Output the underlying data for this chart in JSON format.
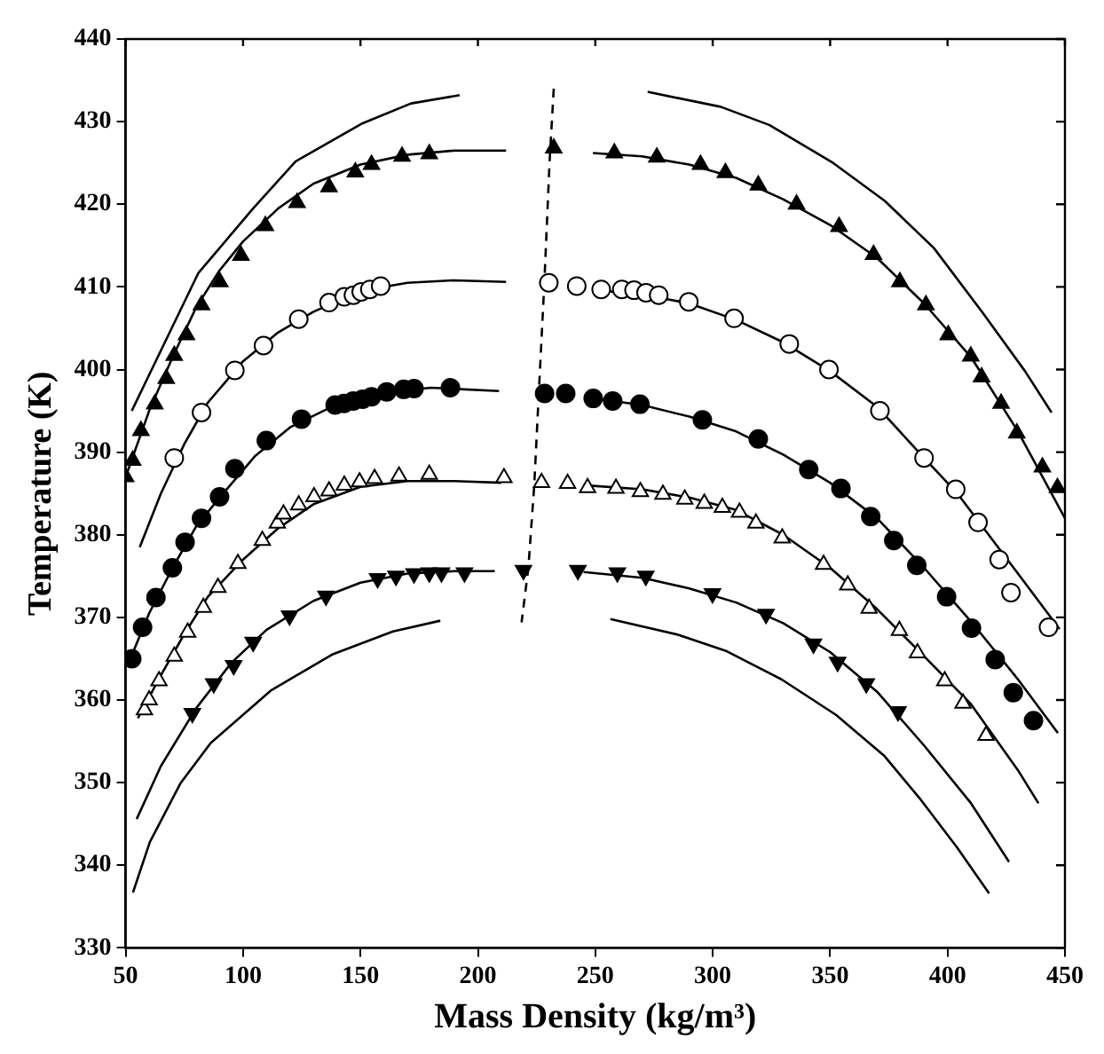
{
  "chart_data": {
    "type": "scatter",
    "xlabel": "Mass Density (kg/m³)",
    "ylabel": "Temperature (K)",
    "xlim": [
      50,
      450
    ],
    "xticks": [
      50,
      100,
      150,
      200,
      250,
      300,
      350,
      400,
      450
    ],
    "ylim": [
      330,
      440
    ],
    "yticks": [
      330,
      340,
      350,
      360,
      370,
      380,
      390,
      400,
      410,
      420,
      430,
      440
    ],
    "grid": false,
    "legend": false,
    "series": [
      {
        "type": "scatter",
        "marker": "triangle",
        "color": "#000000",
        "x": [
          50,
          53,
          56.5,
          62.4,
          67.3,
          70.7,
          75.9,
          82.3,
          90.1,
          99.1,
          109.5,
          123,
          136.6,
          147.8,
          154.7,
          167.7,
          179.3,
          232.3,
          258.1,
          276.2,
          294.8,
          305.4,
          319.4,
          335.7,
          353.8,
          368.5,
          379.7,
          390.8,
          400.3,
          409.9,
          414.5,
          422.8,
          429.5,
          440.4,
          446.8
        ],
        "values": [
          387,
          389,
          392.6,
          395.8,
          398.9,
          401.7,
          404.2,
          407.8,
          410.6,
          413.8,
          417.4,
          420.2,
          422.1,
          423.9,
          424.8,
          425.8,
          426.1,
          426.8,
          426.2,
          425.7,
          424.8,
          423.8,
          422.3,
          420,
          417.3,
          413.9,
          410.6,
          407.8,
          404.2,
          401.6,
          399.1,
          395.9,
          392.3,
          388.2,
          385.7
        ]
      },
      {
        "type": "scatter",
        "marker": "circle_open",
        "color": "#000000",
        "x": [
          70.7,
          82.3,
          96.5,
          108.7,
          123.7,
          136.6,
          143.1,
          147,
          150.3,
          154,
          158.6,
          230.2,
          242.1,
          252.5,
          261.3,
          266.5,
          271.6,
          277,
          289.8,
          309.1,
          332.6,
          349.5,
          371.2,
          390,
          403.5,
          413,
          422,
          427,
          443
        ],
        "values": [
          389.3,
          394.8,
          399.9,
          402.9,
          406.1,
          408.1,
          408.8,
          409,
          409.4,
          409.7,
          410.1,
          410.5,
          410.1,
          409.7,
          409.7,
          409.6,
          409.3,
          409,
          408.2,
          406.2,
          403.1,
          400,
          395,
          389.3,
          385.5,
          381.5,
          377,
          373,
          368.8
        ]
      },
      {
        "type": "scatter",
        "marker": "circle",
        "color": "#000000",
        "x": [
          52.6,
          57.2,
          62.9,
          69.9,
          75.3,
          82.3,
          90,
          96.5,
          109.9,
          124.9,
          139.2,
          143,
          146.9,
          150.9,
          154.7,
          161.2,
          168.4,
          172.8,
          188.3,
          228.4,
          237.4,
          249.1,
          257.4,
          269,
          295.6,
          319.4,
          340.9,
          354.6,
          367.3,
          377.1,
          386.9,
          399.6,
          410.2,
          420.3,
          428,
          436.6
        ],
        "values": [
          365,
          368.8,
          372.4,
          376,
          379.1,
          382,
          384.6,
          388,
          391.4,
          394,
          395.7,
          395.9,
          396.2,
          396.4,
          396.7,
          397.3,
          397.6,
          397.7,
          397.8,
          397.1,
          397.1,
          396.5,
          396.2,
          395.8,
          393.9,
          391.6,
          387.9,
          385.6,
          382.2,
          379.3,
          376.3,
          372.5,
          368.7,
          364.9,
          360.9,
          357.5
        ]
      },
      {
        "type": "scatter",
        "marker": "triangle_open",
        "color": "#000000",
        "x": [
          58,
          60,
          64.2,
          70.7,
          76.4,
          83.1,
          89.3,
          97.8,
          108.2,
          114.6,
          117.2,
          123.7,
          130.2,
          136.6,
          143.1,
          149.6,
          156,
          166.4,
          179.3,
          211.1,
          227.1,
          238.2,
          246.7,
          258.8,
          269.2,
          278.8,
          288.1,
          296.4,
          304.1,
          311.4,
          318.4,
          329.6,
          347.2,
          357.5,
          366.6,
          379.5,
          387.2,
          398.8,
          406.6,
          416.4
        ],
        "values": [
          358.8,
          360,
          362.3,
          365.3,
          368.2,
          371.2,
          373.6,
          376.5,
          379.3,
          381.4,
          382.5,
          383.6,
          384.6,
          385.3,
          386,
          386.4,
          386.8,
          387.1,
          387.3,
          386.9,
          386.3,
          386.2,
          385.7,
          385.6,
          385.2,
          384.9,
          384.3,
          383.8,
          383.3,
          382.7,
          381.4,
          379.6,
          376.4,
          373.9,
          371.1,
          368.4,
          365.7,
          362.3,
          359.6,
          355.7
        ]
      },
      {
        "type": "scatter",
        "marker": "triangle_down",
        "color": "#000000",
        "x": [
          78.4,
          87.5,
          96,
          104.3,
          119.8,
          135.3,
          157.3,
          165.1,
          172.8,
          179.3,
          184.5,
          194.3,
          219.4,
          242.6,
          259.4,
          271.5,
          299.9,
          322.7,
          342.9,
          353.2,
          365.4,
          378.9
        ],
        "values": [
          358.4,
          362,
          364.2,
          367,
          370.2,
          372.6,
          374.7,
          375,
          375.3,
          375.4,
          375.4,
          375.4,
          375.7,
          375.7,
          375.4,
          375,
          372.9,
          370.4,
          366.8,
          364.6,
          362,
          358.6
        ]
      },
      {
        "type": "line",
        "color": "#000000",
        "x": [
          50,
          60,
          70,
          80,
          90,
          100,
          115,
          130,
          150,
          170,
          190,
          212
        ],
        "values": [
          387,
          395,
          401.5,
          407.5,
          412,
          415.5,
          419.5,
          422.5,
          424.8,
          426,
          426.5,
          426.5
        ]
      },
      {
        "type": "line",
        "color": "#000000",
        "x": [
          249,
          270,
          290,
          310,
          330,
          350,
          370,
          390,
          410,
          430,
          450
        ],
        "values": [
          426.2,
          425.8,
          424.8,
          423.2,
          420.6,
          417.5,
          413.5,
          408,
          401.5,
          392.5,
          382
        ]
      },
      {
        "type": "line",
        "color": "#000000",
        "x": [
          56,
          65,
          75,
          85,
          100,
          115,
          130,
          150,
          170,
          190,
          212
        ],
        "values": [
          378.5,
          385,
          391,
          396,
          401,
          404.5,
          407,
          409.5,
          410.5,
          410.8,
          410.6
        ]
      },
      {
        "type": "line",
        "color": "#000000",
        "x": [
          250,
          270,
          290,
          310,
          330,
          350,
          370,
          390,
          404.2,
          430,
          447.7
        ],
        "values": [
          409.6,
          409.1,
          408,
          406,
          403.3,
          399.8,
          395.5,
          389.3,
          385,
          375.3,
          368.6
        ]
      },
      {
        "type": "line",
        "color": "#000000",
        "x": [
          52,
          60,
          70,
          80,
          90,
          105,
          120,
          140,
          160,
          180,
          209
        ],
        "values": [
          365,
          370.5,
          376,
          381,
          384.5,
          389.5,
          393,
          395.8,
          397.2,
          397.8,
          397.4
        ]
      },
      {
        "type": "line",
        "color": "#000000",
        "x": [
          249,
          270,
          290,
          310,
          330,
          350,
          370,
          390,
          410,
          430,
          447
        ],
        "values": [
          396.5,
          395.7,
          394.3,
          392.5,
          389.7,
          386.3,
          382,
          376,
          369.5,
          362.5,
          356
        ]
      },
      {
        "type": "line",
        "color": "#000000",
        "x": [
          55.2,
          65,
          75,
          85,
          100,
          115,
          130,
          150,
          170,
          190,
          210
        ],
        "values": [
          357.8,
          363,
          368,
          372.5,
          377,
          380.8,
          383.7,
          385.8,
          386.5,
          386.5,
          386.3
        ]
      },
      {
        "type": "line",
        "color": "#000000",
        "x": [
          245,
          270,
          290,
          310,
          330,
          350,
          370,
          390,
          410,
          430,
          438.7
        ],
        "values": [
          386,
          385.5,
          384.5,
          383,
          380,
          376,
          371,
          365.3,
          359.5,
          351.5,
          347.5
        ]
      },
      {
        "type": "line",
        "color": "#000000",
        "x": [
          54.7,
          65,
          80,
          95,
          110,
          130,
          150,
          170,
          190,
          207.2
        ],
        "values": [
          345.6,
          352,
          359,
          364.5,
          368.5,
          372,
          374.2,
          375.3,
          375.6,
          375.6
        ]
      },
      {
        "type": "line",
        "color": "#000000",
        "x": [
          245,
          270,
          290,
          310,
          330,
          350,
          370,
          390,
          410,
          426.2
        ],
        "values": [
          375.5,
          374.8,
          373.5,
          371.8,
          369.3,
          365.8,
          361,
          354.5,
          347.5,
          340.4
        ]
      },
      {
        "type": "line",
        "color": "#000000",
        "x": [
          52.6,
          61.6,
          81,
          104.3,
          122.4,
          150.9,
          171.5,
          192.2
        ],
        "values": [
          395,
          400.3,
          411.7,
          419.5,
          425.2,
          429.8,
          432.2,
          433.2
        ]
      },
      {
        "type": "line",
        "color": "#000000",
        "x": [
          272.3,
          303.4,
          324.1,
          351.3,
          373.3,
          394.2,
          414.9,
          433,
          444.3
        ],
        "values": [
          433.6,
          431.8,
          429.6,
          425,
          420.4,
          414.7,
          406.9,
          399.8,
          394.8
        ]
      },
      {
        "type": "line",
        "color": "#000000",
        "x": [
          53.1,
          60.3,
          73.3,
          86.2,
          112.1,
          137.9,
          163.8,
          184
        ],
        "values": [
          336.7,
          342.8,
          349.9,
          354.8,
          361.2,
          365.5,
          368.3,
          369.6
        ]
      },
      {
        "type": "line",
        "color": "#000000",
        "x": [
          256.4,
          285.3,
          306,
          329.3,
          352.5,
          373.2,
          388.7,
          404.2,
          417.7
        ],
        "values": [
          369.8,
          367.9,
          365.9,
          362.5,
          358.2,
          353.2,
          347.9,
          342.1,
          336.6
        ]
      },
      {
        "type": "line",
        "color": "#000000",
        "line_style": "dashed",
        "x": [
          232.3,
          230.5,
          228.3,
          226,
          224,
          221.5,
          218.6
        ],
        "values": [
          434,
          425,
          410.5,
          397.5,
          386,
          376,
          369.4
        ]
      }
    ]
  }
}
